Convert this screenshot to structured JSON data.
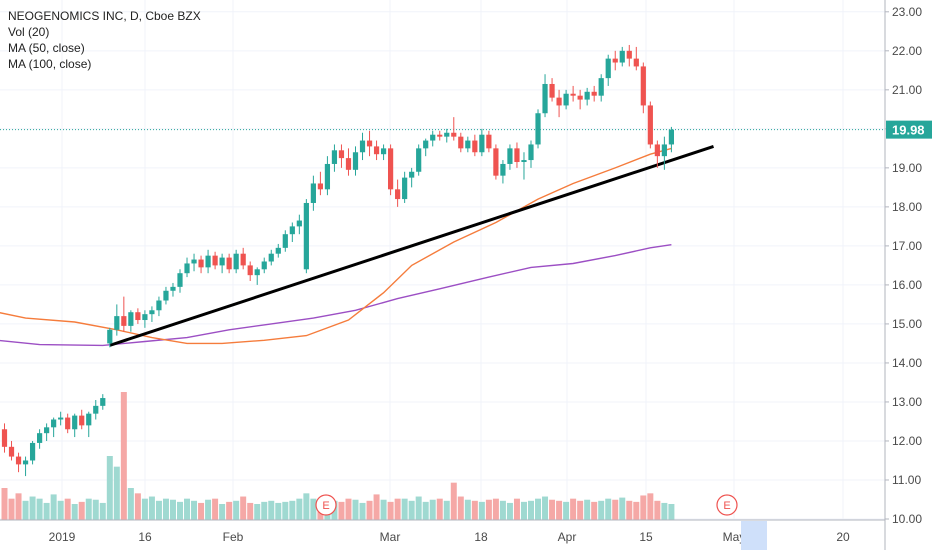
{
  "chart_data": {
    "type": "candlestick",
    "legend_lines": [
      "NEOGENOMICS INC, D, Cboe BZX",
      "Vol (20)",
      "MA (50, close)",
      "MA (100, close)"
    ],
    "last_price_label": "19.98",
    "ylim": [
      10.0,
      23.2
    ],
    "y_ticks": [
      "10.00",
      "11.00",
      "12.00",
      "13.00",
      "14.00",
      "15.00",
      "16.00",
      "17.00",
      "18.00",
      "19.00",
      "20.00",
      "21.00",
      "22.00",
      "23.00"
    ],
    "x_ticks": [
      "2019",
      "16",
      "Feb",
      "Mar",
      "18",
      "Apr",
      "15",
      "May",
      "20"
    ],
    "earnings_marker": "E",
    "colors": {
      "up": "#26a69a",
      "down": "#ef5350",
      "vol_up": "#9fd9d1",
      "vol_down": "#f5a8a6",
      "ma50": "#f57c3c",
      "ma100": "#9c4fc4",
      "price_line": "#26a69a",
      "trendline": "#000000"
    },
    "candles": [
      [
        12.3,
        12.45,
        11.7,
        11.85
      ],
      [
        11.85,
        12.0,
        11.5,
        11.6
      ],
      [
        11.6,
        11.7,
        11.2,
        11.4
      ],
      [
        11.4,
        11.6,
        11.1,
        11.5
      ],
      [
        11.5,
        12.0,
        11.4,
        11.95
      ],
      [
        11.95,
        12.3,
        11.8,
        12.2
      ],
      [
        12.2,
        12.45,
        12.0,
        12.35
      ],
      [
        12.35,
        12.6,
        12.1,
        12.55
      ],
      [
        12.55,
        12.75,
        12.4,
        12.6
      ],
      [
        12.6,
        12.7,
        12.2,
        12.3
      ],
      [
        12.3,
        12.7,
        12.1,
        12.65
      ],
      [
        12.65,
        12.8,
        12.3,
        12.4
      ],
      [
        12.4,
        12.75,
        12.1,
        12.7
      ],
      [
        12.7,
        13.05,
        12.55,
        12.9
      ],
      [
        12.9,
        13.2,
        12.8,
        13.1
      ],
      [
        14.5,
        14.9,
        14.4,
        14.85
      ],
      [
        14.85,
        15.5,
        14.7,
        15.2
      ],
      [
        15.2,
        15.7,
        14.8,
        14.95
      ],
      [
        14.95,
        15.35,
        14.8,
        15.3
      ],
      [
        15.3,
        15.4,
        15.0,
        15.1
      ],
      [
        15.1,
        15.35,
        14.9,
        15.25
      ],
      [
        15.25,
        15.45,
        15.05,
        15.35
      ],
      [
        15.35,
        15.7,
        15.2,
        15.6
      ],
      [
        15.6,
        15.95,
        15.5,
        15.85
      ],
      [
        15.85,
        16.05,
        15.7,
        15.95
      ],
      [
        15.95,
        16.4,
        15.8,
        16.3
      ],
      [
        16.3,
        16.7,
        16.2,
        16.55
      ],
      [
        16.55,
        16.8,
        16.35,
        16.65
      ],
      [
        16.65,
        16.75,
        16.3,
        16.45
      ],
      [
        16.45,
        16.9,
        16.3,
        16.75
      ],
      [
        16.75,
        16.85,
        16.4,
        16.5
      ],
      [
        16.5,
        16.8,
        16.3,
        16.7
      ],
      [
        16.7,
        16.8,
        16.3,
        16.4
      ],
      [
        16.4,
        16.9,
        16.3,
        16.8
      ],
      [
        16.8,
        16.95,
        16.4,
        16.5
      ],
      [
        16.5,
        16.6,
        16.1,
        16.25
      ],
      [
        16.25,
        16.45,
        16.0,
        16.4
      ],
      [
        16.4,
        16.7,
        16.3,
        16.6
      ],
      [
        16.6,
        16.9,
        16.5,
        16.8
      ],
      [
        16.8,
        17.05,
        16.7,
        16.95
      ],
      [
        16.95,
        17.4,
        16.85,
        17.3
      ],
      [
        17.3,
        17.6,
        17.1,
        17.5
      ],
      [
        17.5,
        17.8,
        17.3,
        17.65
      ],
      [
        16.4,
        18.2,
        16.3,
        18.1
      ],
      [
        18.1,
        18.8,
        17.9,
        18.6
      ],
      [
        18.6,
        18.9,
        18.3,
        18.45
      ],
      [
        18.45,
        19.3,
        18.3,
        19.1
      ],
      [
        19.1,
        19.6,
        18.9,
        19.45
      ],
      [
        19.45,
        19.6,
        19.0,
        19.25
      ],
      [
        19.25,
        19.5,
        18.8,
        18.95
      ],
      [
        18.95,
        19.55,
        18.8,
        19.4
      ],
      [
        19.4,
        19.9,
        19.2,
        19.7
      ],
      [
        19.7,
        19.95,
        19.3,
        19.55
      ],
      [
        19.55,
        19.7,
        19.2,
        19.35
      ],
      [
        19.35,
        19.6,
        19.2,
        19.5
      ],
      [
        19.5,
        19.6,
        18.3,
        18.45
      ],
      [
        18.45,
        18.7,
        18.0,
        18.2
      ],
      [
        18.2,
        18.9,
        18.1,
        18.75
      ],
      [
        18.75,
        19.0,
        18.5,
        18.9
      ],
      [
        18.9,
        19.6,
        18.8,
        19.5
      ],
      [
        19.5,
        19.75,
        19.3,
        19.7
      ],
      [
        19.7,
        19.95,
        19.55,
        19.85
      ],
      [
        19.85,
        19.95,
        19.7,
        19.8
      ],
      [
        19.8,
        20.0,
        19.65,
        19.9
      ],
      [
        19.9,
        20.3,
        19.7,
        19.8
      ],
      [
        19.8,
        19.9,
        19.4,
        19.5
      ],
      [
        19.5,
        19.8,
        19.4,
        19.7
      ],
      [
        19.7,
        19.85,
        19.3,
        19.4
      ],
      [
        19.4,
        20.0,
        19.3,
        19.85
      ],
      [
        19.85,
        19.95,
        19.4,
        19.5
      ],
      [
        19.5,
        19.6,
        18.7,
        18.8
      ],
      [
        18.8,
        19.2,
        18.6,
        19.1
      ],
      [
        19.1,
        19.6,
        18.95,
        19.5
      ],
      [
        19.5,
        19.65,
        19.0,
        19.15
      ],
      [
        19.15,
        19.4,
        18.7,
        19.2
      ],
      [
        19.2,
        19.7,
        19.0,
        19.6
      ],
      [
        19.6,
        20.5,
        19.5,
        20.4
      ],
      [
        20.4,
        21.4,
        20.3,
        21.15
      ],
      [
        21.15,
        21.3,
        20.7,
        20.8
      ],
      [
        20.8,
        21.0,
        20.3,
        20.6
      ],
      [
        20.6,
        21.0,
        20.5,
        20.9
      ],
      [
        20.9,
        21.1,
        20.7,
        20.85
      ],
      [
        20.85,
        21.0,
        20.5,
        20.75
      ],
      [
        20.75,
        21.05,
        20.6,
        20.95
      ],
      [
        20.95,
        21.1,
        20.7,
        20.85
      ],
      [
        20.85,
        21.4,
        20.7,
        21.3
      ],
      [
        21.3,
        21.9,
        21.1,
        21.8
      ],
      [
        21.8,
        22.0,
        21.5,
        21.7
      ],
      [
        21.7,
        22.1,
        21.6,
        22.0
      ],
      [
        22.0,
        22.15,
        21.6,
        21.8
      ],
      [
        21.8,
        22.1,
        21.5,
        21.6
      ],
      [
        21.6,
        21.7,
        20.4,
        20.6
      ],
      [
        20.6,
        20.7,
        19.5,
        19.6
      ],
      [
        19.6,
        19.7,
        19.0,
        19.3
      ],
      [
        19.3,
        19.8,
        18.95,
        19.6
      ],
      [
        19.6,
        20.05,
        19.4,
        19.98
      ]
    ],
    "volume": [
      3.0,
      2.0,
      2.5,
      1.8,
      2.2,
      2.0,
      1.6,
      2.4,
      1.8,
      2.0,
      1.5,
      1.7,
      2.0,
      1.9,
      1.6,
      6.0,
      5.0,
      12.0,
      3.0,
      2.5,
      2.0,
      2.2,
      1.8,
      2.0,
      1.9,
      1.7,
      2.0,
      1.8,
      1.6,
      1.9,
      2.0,
      1.5,
      1.7,
      1.8,
      2.2,
      1.6,
      1.5,
      1.7,
      1.8,
      1.6,
      1.7,
      1.8,
      2.0,
      2.5,
      2.0,
      1.9,
      2.1,
      1.8,
      1.7,
      2.0,
      1.9,
      1.6,
      1.8,
      2.4,
      1.9,
      1.7,
      2.0,
      2.0,
      1.8,
      2.2,
      1.7,
      1.9,
      2.0,
      1.8,
      3.5,
      2.2,
      1.9,
      1.8,
      1.7,
      1.9,
      2.0,
      1.8,
      1.6,
      2.0,
      1.7,
      1.8,
      2.0,
      2.2,
      1.9,
      1.8,
      1.7,
      2.0,
      1.8,
      1.9,
      1.7,
      1.8,
      2.0,
      1.9,
      2.1,
      1.8,
      1.7,
      2.3,
      2.5,
      1.8,
      1.6,
      1.5
    ],
    "ma50": [
      [
        -1,
        15.3
      ],
      [
        3,
        15.15
      ],
      [
        10,
        15.05
      ],
      [
        16,
        14.85
      ],
      [
        21,
        14.65
      ],
      [
        26,
        14.5
      ],
      [
        31,
        14.5
      ],
      [
        37,
        14.58
      ],
      [
        43,
        14.7
      ],
      [
        49,
        15.1
      ],
      [
        54,
        15.8
      ],
      [
        58,
        16.5
      ],
      [
        64,
        17.1
      ],
      [
        70,
        17.6
      ],
      [
        76,
        18.2
      ],
      [
        81,
        18.6
      ],
      [
        87,
        19.0
      ],
      [
        92,
        19.35
      ],
      [
        95,
        19.5
      ]
    ],
    "ma100": [
      [
        -1,
        14.58
      ],
      [
        5,
        14.47
      ],
      [
        14,
        14.45
      ],
      [
        20,
        14.55
      ],
      [
        26,
        14.65
      ],
      [
        32,
        14.85
      ],
      [
        38,
        15.0
      ],
      [
        44,
        15.15
      ],
      [
        50,
        15.35
      ],
      [
        56,
        15.65
      ],
      [
        62,
        15.9
      ],
      [
        69,
        16.2
      ],
      [
        75,
        16.45
      ],
      [
        81,
        16.55
      ],
      [
        87,
        16.75
      ],
      [
        92,
        16.95
      ],
      [
        95,
        17.03
      ]
    ],
    "trendline": [
      [
        15,
        14.45
      ],
      [
        101,
        19.55
      ]
    ]
  }
}
